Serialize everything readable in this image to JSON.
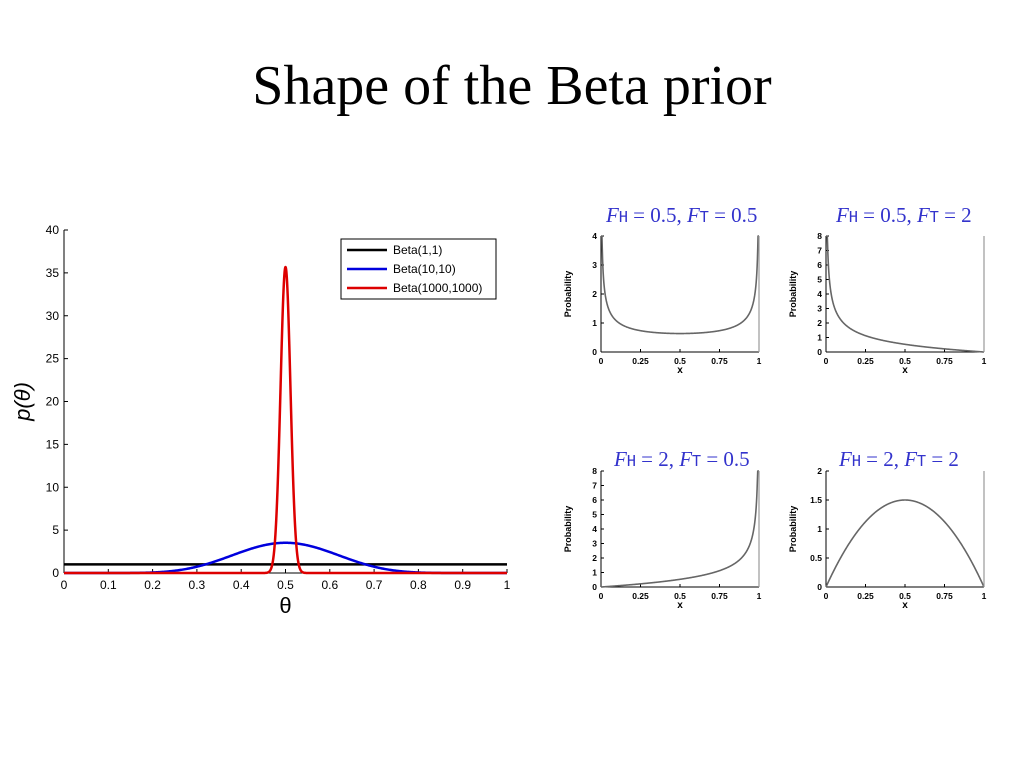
{
  "slide": {
    "title": "Shape of the Beta prior"
  },
  "chart_data": [
    {
      "type": "line",
      "xlabel": "θ",
      "ylabel": "p(θ)",
      "xlim": [
        0,
        1
      ],
      "ylim": [
        0,
        40
      ],
      "xticks": [
        "0",
        "0.1",
        "0.2",
        "0.3",
        "0.4",
        "0.5",
        "0.6",
        "0.7",
        "0.8",
        "0.9",
        "1"
      ],
      "yticks": [
        "0",
        "5",
        "10",
        "15",
        "20",
        "25",
        "30",
        "35",
        "40"
      ],
      "legend_position": "top-right",
      "series": [
        {
          "name": "Beta(1,1)",
          "color": "#000000",
          "a": 1,
          "b": 1
        },
        {
          "name": "Beta(10,10)",
          "color": "#0000dd",
          "a": 10,
          "b": 10
        },
        {
          "name": "Beta(1000,1000)",
          "color": "#dd0000",
          "a": 1000,
          "b": 1000
        }
      ]
    },
    {
      "type": "line",
      "title_parts": [
        "F",
        "H",
        " = 0.5, ",
        "F",
        "T",
        " = 0.5"
      ],
      "xlabel": "x",
      "ylabel": "Probability",
      "a": 0.5,
      "b": 0.5,
      "xlim": [
        0,
        1
      ],
      "ylim": [
        0,
        4
      ],
      "xticks": [
        "0",
        "0.25",
        "0.5",
        "0.75",
        "1"
      ],
      "yticks": [
        "0",
        "1",
        "2",
        "3",
        "4"
      ],
      "color": "#666666"
    },
    {
      "type": "line",
      "title_parts": [
        "F",
        "H",
        " = 0.5, ",
        "F",
        "T",
        " = 2"
      ],
      "xlabel": "x",
      "ylabel": "Probability",
      "a": 0.5,
      "b": 2,
      "xlim": [
        0,
        1
      ],
      "ylim": [
        0,
        8
      ],
      "xticks": [
        "0",
        "0.25",
        "0.5",
        "0.75",
        "1"
      ],
      "yticks": [
        "0",
        "1",
        "2",
        "3",
        "4",
        "5",
        "6",
        "7",
        "8"
      ],
      "color": "#666666"
    },
    {
      "type": "line",
      "title_parts": [
        "F",
        "H",
        " = 2, ",
        "F",
        "T",
        " = 0.5"
      ],
      "xlabel": "x",
      "ylabel": "Probability",
      "a": 2,
      "b": 0.5,
      "xlim": [
        0,
        1
      ],
      "ylim": [
        0,
        8
      ],
      "xticks": [
        "0",
        "0.25",
        "0.5",
        "0.75",
        "1"
      ],
      "yticks": [
        "0",
        "1",
        "2",
        "3",
        "4",
        "5",
        "6",
        "7",
        "8"
      ],
      "color": "#666666"
    },
    {
      "type": "line",
      "title_parts": [
        "F",
        "H",
        " = 2, ",
        "F",
        "T",
        " = 2"
      ],
      "xlabel": "x",
      "ylabel": "Probability",
      "a": 2,
      "b": 2,
      "xlim": [
        0,
        1
      ],
      "ylim": [
        0,
        2
      ],
      "xticks": [
        "0",
        "0.25",
        "0.5",
        "0.75",
        "1"
      ],
      "yticks": [
        "0",
        "0.5",
        "1",
        "1.5",
        "2"
      ],
      "color": "#666666"
    }
  ]
}
